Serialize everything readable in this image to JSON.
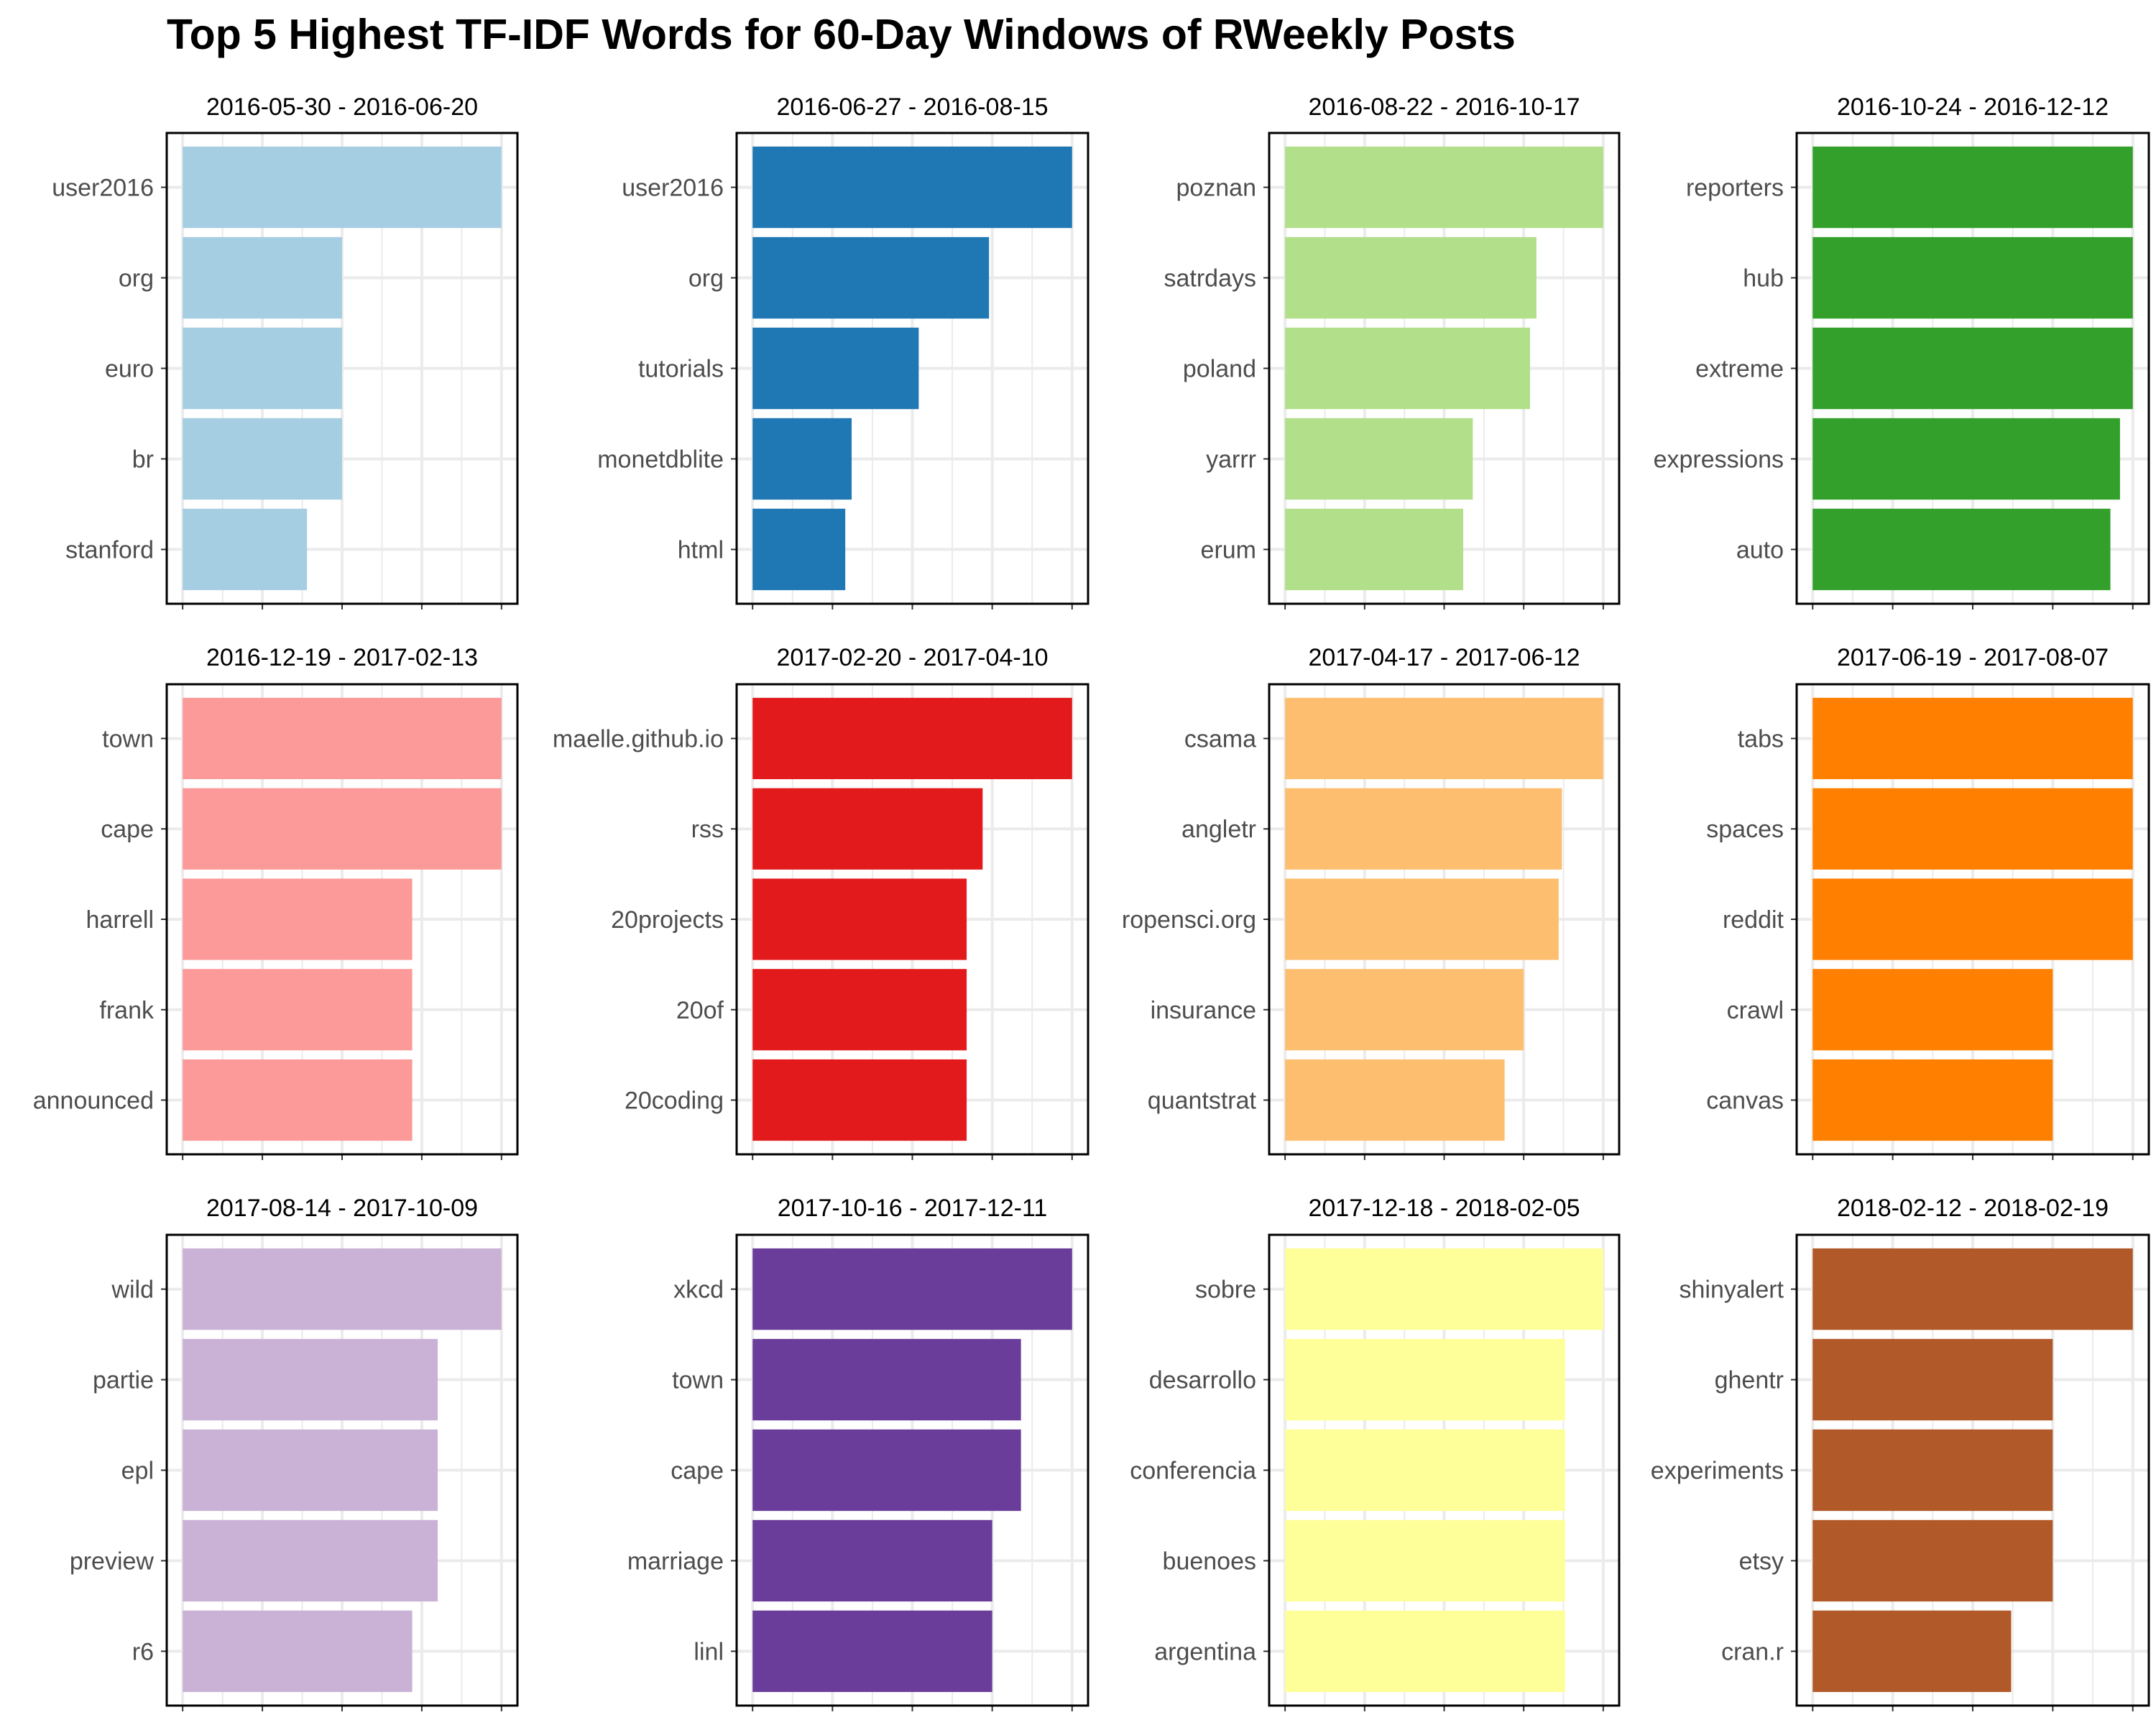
{
  "title": "Top 5 Highest TF-IDF Words for 60-Day Windows of RWeekly Posts",
  "style": {
    "panel_border": "#000000",
    "grid": "#ebebeb",
    "label_color": "#4d4d4d",
    "title_color": "#000000"
  },
  "chart_data": {
    "type": "bar",
    "orientation": "horizontal",
    "layout": {
      "rows": 3,
      "cols": 4
    },
    "value_note": "values are relative bar lengths; the x axis prints no tick labels",
    "panels": [
      {
        "title": "2016-05-30 - 2016-06-20",
        "color": "#a6cee3",
        "categories": [
          "user2016",
          "org",
          "euro",
          "br",
          "stanford"
        ],
        "values": [
          1.0,
          0.5,
          0.5,
          0.5,
          0.39
        ]
      },
      {
        "title": "2016-06-27 - 2016-08-15",
        "color": "#1f78b4",
        "categories": [
          "user2016",
          "org",
          "tutorials",
          "monetdblite",
          "html"
        ],
        "values": [
          1.0,
          0.74,
          0.52,
          0.31,
          0.29
        ]
      },
      {
        "title": "2016-08-22 - 2016-10-17",
        "color": "#b2df8a",
        "categories": [
          "poznan",
          "satrdays",
          "poland",
          "yarrr",
          "erum"
        ],
        "values": [
          1.0,
          0.79,
          0.77,
          0.59,
          0.56
        ]
      },
      {
        "title": "2016-10-24 - 2016-12-12",
        "color": "#33a02c",
        "categories": [
          "reporters",
          "hub",
          "extreme",
          "expressions",
          "auto"
        ],
        "values": [
          1.0,
          1.0,
          1.0,
          0.96,
          0.93
        ]
      },
      {
        "title": "2016-12-19 - 2017-02-13",
        "color": "#fb9a99",
        "categories": [
          "town",
          "cape",
          "harrell",
          "frank",
          "announced"
        ],
        "values": [
          1.0,
          1.0,
          0.72,
          0.72,
          0.72
        ]
      },
      {
        "title": "2017-02-20 - 2017-04-10",
        "color": "#e31a1c",
        "categories": [
          "maelle.github.io",
          "rss",
          "20projects",
          "20of",
          "20coding"
        ],
        "values": [
          1.0,
          0.72,
          0.67,
          0.67,
          0.67
        ]
      },
      {
        "title": "2017-04-17 - 2017-06-12",
        "color": "#fdbf6f",
        "categories": [
          "csama",
          "angletr",
          "ropensci.org",
          "insurance",
          "quantstrat"
        ],
        "values": [
          1.0,
          0.87,
          0.86,
          0.75,
          0.69
        ]
      },
      {
        "title": "2017-06-19 - 2017-08-07",
        "color": "#ff7f00",
        "categories": [
          "tabs",
          "spaces",
          "reddit",
          "crawl",
          "canvas"
        ],
        "values": [
          1.0,
          1.0,
          1.0,
          0.75,
          0.75
        ]
      },
      {
        "title": "2017-08-14 - 2017-10-09",
        "color": "#cab2d6",
        "categories": [
          "wild",
          "partie",
          "epl",
          "preview",
          "r6"
        ],
        "values": [
          1.0,
          0.8,
          0.8,
          0.8,
          0.72
        ]
      },
      {
        "title": "2017-10-16 - 2017-12-11",
        "color": "#6a3d9a",
        "categories": [
          "xkcd",
          "town",
          "cape",
          "marriage",
          "linl"
        ],
        "values": [
          1.0,
          0.84,
          0.84,
          0.75,
          0.75
        ]
      },
      {
        "title": "2017-12-18 - 2018-02-05",
        "color": "#ffff99",
        "categories": [
          "sobre",
          "desarrollo",
          "conferencia",
          "buenoes",
          "argentina"
        ],
        "values": [
          1.0,
          0.88,
          0.88,
          0.88,
          0.88
        ]
      },
      {
        "title": "2018-02-12 - 2018-02-19",
        "color": "#b15928",
        "categories": [
          "shinyalert",
          "ghentr",
          "experiments",
          "etsy",
          "cran.r"
        ],
        "values": [
          1.0,
          0.75,
          0.75,
          0.75,
          0.62
        ]
      }
    ]
  }
}
